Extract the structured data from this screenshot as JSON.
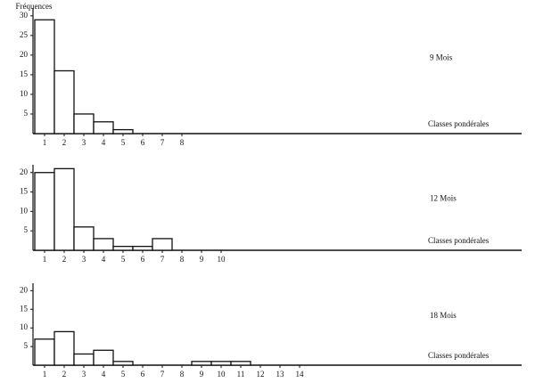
{
  "chart_data": [
    {
      "type": "bar",
      "y_label": "Fréquences",
      "label": "9 Mois",
      "x_label": "Classes pondérales",
      "categories": [
        "1",
        "2",
        "3",
        "4",
        "5",
        "6",
        "7",
        "8"
      ],
      "values": [
        29,
        16,
        5,
        3,
        1,
        0,
        0,
        0
      ],
      "color": "#ffffff",
      "ylim": [
        0,
        32
      ],
      "yticks": [
        5,
        10,
        15,
        20,
        25,
        30
      ]
    },
    {
      "type": "bar",
      "label": "12 Mois",
      "x_label": "Classes pondérales",
      "categories": [
        "1",
        "2",
        "3",
        "4",
        "5",
        "6",
        "7",
        "8",
        "9",
        "10"
      ],
      "values": [
        20,
        21,
        6,
        3,
        1,
        1,
        3,
        0,
        0,
        0
      ],
      "color": "#ffffff",
      "ylim": [
        0,
        22
      ],
      "yticks": [
        5,
        10,
        15,
        20
      ]
    },
    {
      "type": "bar",
      "label": "18 Mois",
      "x_label": "Classes pondérales",
      "categories": [
        "1",
        "2",
        "3",
        "4",
        "5",
        "6",
        "7",
        "8",
        "9",
        "10",
        "11",
        "12",
        "13",
        "14"
      ],
      "values": [
        7,
        9,
        3,
        4,
        1,
        0,
        0,
        0,
        1,
        1,
        1,
        0,
        0,
        0
      ],
      "color": "#ffffff",
      "ylim": [
        0,
        22
      ],
      "yticks": [
        5,
        10,
        15,
        20
      ]
    }
  ]
}
